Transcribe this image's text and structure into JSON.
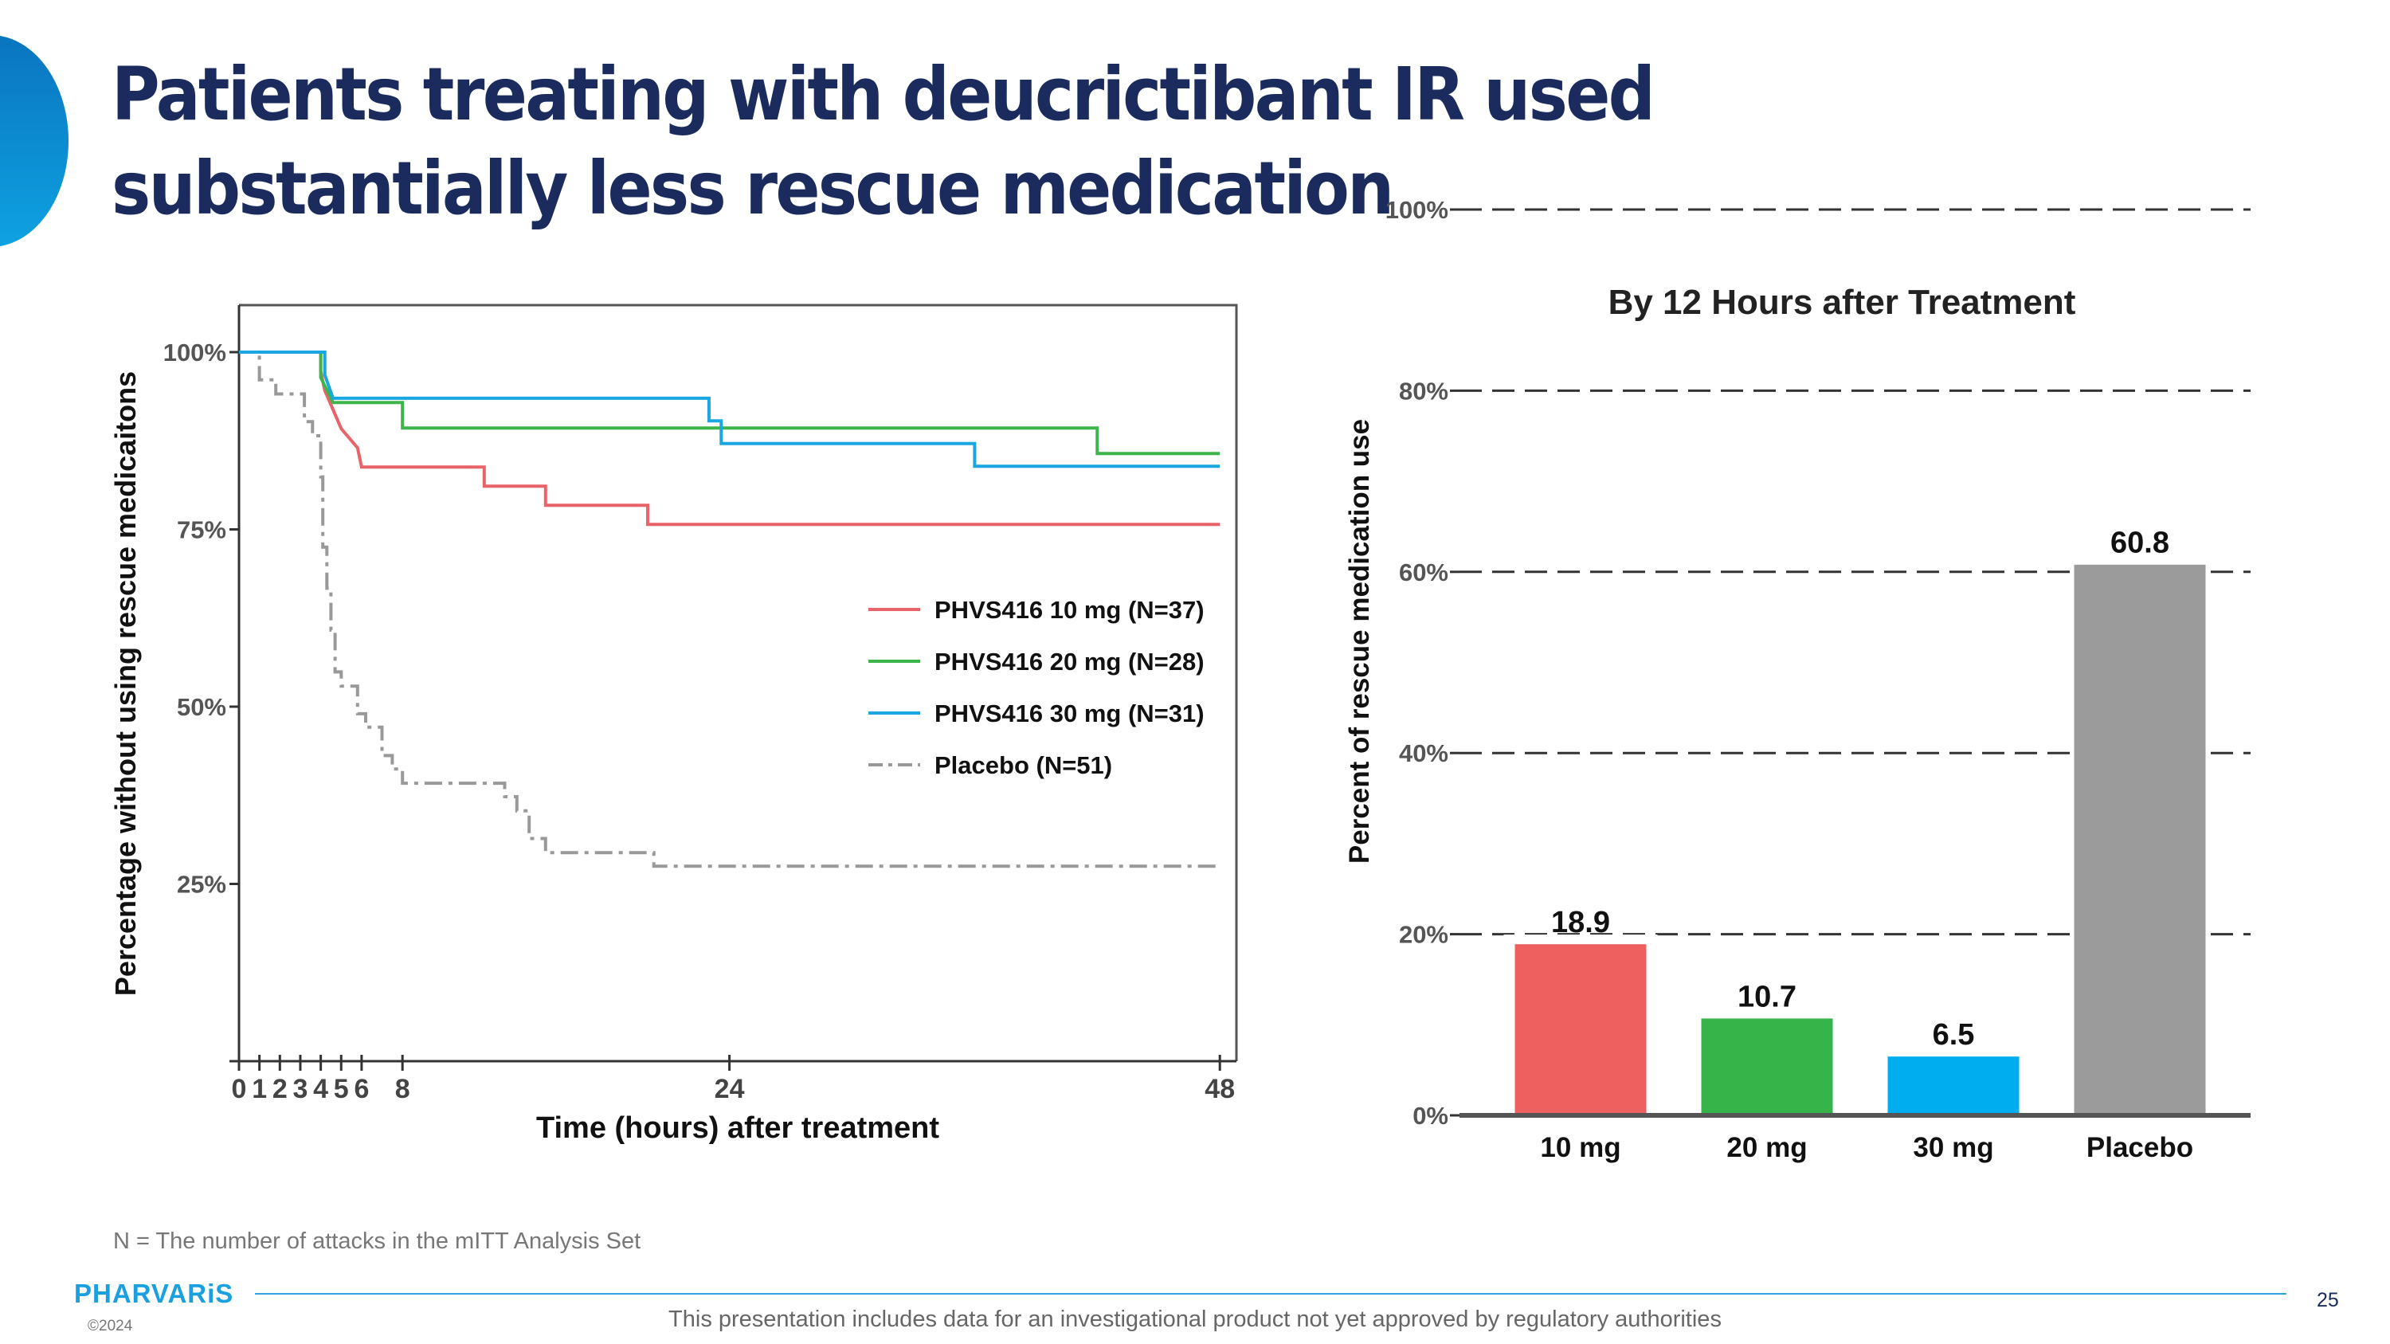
{
  "slide": {
    "title": "Patients treating with deucrictibant IR used substantially less rescue medication",
    "footnote": "N = The number of attacks in the mITT Analysis Set",
    "logo": "PHARVARiS",
    "copyright": "©2024",
    "disclaimer": "This presentation includes data for an investigational product not yet approved by regulatory authorities",
    "page_number": "25",
    "accent_color": "#1b2b5e",
    "logo_color": "#1aa0e0"
  },
  "chart_data": [
    {
      "type": "line",
      "title": "",
      "xlabel": "Time (hours) after treatment",
      "ylabel": "Percentage without using rescue medicaitons",
      "xlim": [
        0,
        48
      ],
      "ylim": [
        0,
        100
      ],
      "x_ticks": [
        0,
        1,
        2,
        3,
        4,
        5,
        6,
        8,
        24,
        48
      ],
      "y_ticks": [
        25,
        50,
        75,
        100
      ],
      "y_tick_labels": [
        "25%",
        "50%",
        "75%",
        "100%"
      ],
      "step": true,
      "legend_position": "right",
      "series": [
        {
          "name": "PHVS416 10 mg (N=37)",
          "color": "#e8636a",
          "dash": "solid",
          "points": [
            [
              0,
              100
            ],
            [
              4,
              100
            ],
            [
              4,
              97.3
            ],
            [
              4.2,
              94.6
            ],
            [
              4.6,
              91.9
            ],
            [
              5,
              89.2
            ],
            [
              5.8,
              86.5
            ],
            [
              6,
              83.8
            ],
            [
              12,
              83.8
            ],
            [
              12,
              81.1
            ],
            [
              15,
              81.1
            ],
            [
              15,
              78.4
            ],
            [
              20,
              78.4
            ],
            [
              20,
              75.7
            ],
            [
              48,
              75.7
            ]
          ]
        },
        {
          "name": "PHVS416 20 mg (N=28)",
          "color": "#3db54a",
          "dash": "solid",
          "points": [
            [
              0,
              100
            ],
            [
              4,
              100
            ],
            [
              4,
              96.4
            ],
            [
              4.6,
              92.9
            ],
            [
              8,
              92.9
            ],
            [
              8,
              89.3
            ],
            [
              42,
              89.3
            ],
            [
              42,
              85.7
            ],
            [
              48,
              85.7
            ]
          ]
        },
        {
          "name": "PHVS416 30 mg (N=31)",
          "color": "#1aa6e0",
          "dash": "solid",
          "points": [
            [
              0,
              100
            ],
            [
              4.2,
              100
            ],
            [
              4.2,
              96.8
            ],
            [
              4.6,
              93.5
            ],
            [
              23,
              93.5
            ],
            [
              23,
              90.3
            ],
            [
              23.6,
              90.3
            ],
            [
              23.6,
              87.1
            ],
            [
              36,
              87.1
            ],
            [
              36,
              83.9
            ],
            [
              48,
              83.9
            ]
          ]
        },
        {
          "name": "Placebo (N=51)",
          "color": "#999999",
          "dash": "dashdot",
          "points": [
            [
              0,
              100
            ],
            [
              1,
              100
            ],
            [
              1,
              96.1
            ],
            [
              1.8,
              96.1
            ],
            [
              1.8,
              94.1
            ],
            [
              3.2,
              94.1
            ],
            [
              3.2,
              90.2
            ],
            [
              3.6,
              90.2
            ],
            [
              3.6,
              88.2
            ],
            [
              4,
              88.2
            ],
            [
              4,
              82.4
            ],
            [
              4.1,
              82.4
            ],
            [
              4.1,
              72.5
            ],
            [
              4.3,
              72.5
            ],
            [
              4.3,
              66.7
            ],
            [
              4.5,
              66.7
            ],
            [
              4.5,
              60.8
            ],
            [
              4.7,
              60.8
            ],
            [
              4.7,
              54.9
            ],
            [
              5,
              54.9
            ],
            [
              5,
              52.9
            ],
            [
              5.8,
              52.9
            ],
            [
              5.8,
              49
            ],
            [
              6.2,
              49
            ],
            [
              6.2,
              47.1
            ],
            [
              7,
              47.1
            ],
            [
              7,
              43.1
            ],
            [
              7.5,
              43.1
            ],
            [
              7.5,
              41.2
            ],
            [
              8,
              41.2
            ],
            [
              8,
              39.2
            ],
            [
              13,
              39.2
            ],
            [
              13,
              37.3
            ],
            [
              13.6,
              37.3
            ],
            [
              13.6,
              35.3
            ],
            [
              14.2,
              35.3
            ],
            [
              14.2,
              31.4
            ],
            [
              15,
              31.4
            ],
            [
              15,
              29.4
            ],
            [
              20.3,
              29.4
            ],
            [
              20.3,
              27.5
            ],
            [
              48,
              27.5
            ]
          ]
        }
      ]
    },
    {
      "type": "bar",
      "title": "By 12 Hours after Treatment",
      "xlabel": "",
      "ylabel": "Percent of rescue medication use",
      "categories": [
        "10 mg",
        "20 mg",
        "30 mg",
        "Placebo"
      ],
      "values": [
        18.9,
        10.7,
        6.5,
        60.8
      ],
      "value_labels": [
        "18.9",
        "10.7",
        "6.5",
        "60.8"
      ],
      "colors": [
        "#ee5f5f",
        "#36b44a",
        "#00aeef",
        "#9b9b9b"
      ],
      "ylim": [
        0,
        100
      ],
      "y_ticks": [
        0,
        20,
        40,
        60,
        80,
        100
      ],
      "y_tick_labels": [
        "0%",
        "20%",
        "40%",
        "60%",
        "80%",
        "100%"
      ],
      "grid": "dashed horizontal"
    }
  ]
}
